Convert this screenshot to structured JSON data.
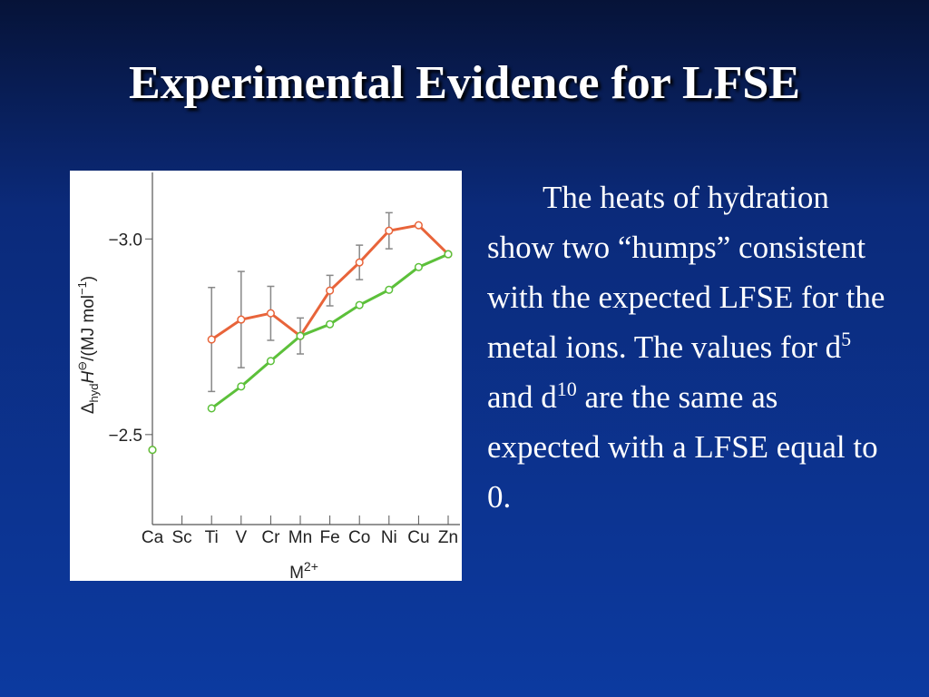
{
  "title": "Experimental Evidence for LFSE",
  "body": [
    "The heats of hydration show two “humps” consistent with the expected LFSE for the metal ions.  The values for d",
    "5",
    " and d",
    "10",
    " are the same as expected with a LFSE equal to 0."
  ],
  "chart_data": {
    "type": "line",
    "ylabel": [
      "Δ",
      "hyd",
      "H",
      "⊖",
      "/(MJ mol",
      "−1",
      ")"
    ],
    "xlabel": [
      "M",
      "2+"
    ],
    "categories": [
      "Ca",
      "Sc",
      "Ti",
      "V",
      "Cr",
      "Mn",
      "Fe",
      "Co",
      "Ni",
      "Cu",
      "Zn"
    ],
    "series": [
      {
        "color": "#e8643a",
        "values": [
          -2.461,
          null,
          -2.743,
          -2.794,
          -2.81,
          -2.752,
          -2.868,
          -2.94,
          -3.021,
          -3.035,
          -2.961
        ],
        "errors": [
          null,
          null,
          0.133,
          0.123,
          0.069,
          0.046,
          0.039,
          0.044,
          0.046,
          null,
          null
        ]
      },
      {
        "color": "#5cc03a",
        "values": [
          -2.461,
          null,
          -2.567,
          -2.623,
          -2.688,
          -2.752,
          -2.782,
          -2.831,
          -2.87,
          -2.928,
          -2.961
        ]
      }
    ],
    "ylim": [
      -2.27,
      -3.17
    ],
    "yticks": [
      {
        "value": -3.0,
        "label": "−3.0"
      },
      {
        "value": -2.5,
        "label": "−2.5"
      }
    ]
  }
}
